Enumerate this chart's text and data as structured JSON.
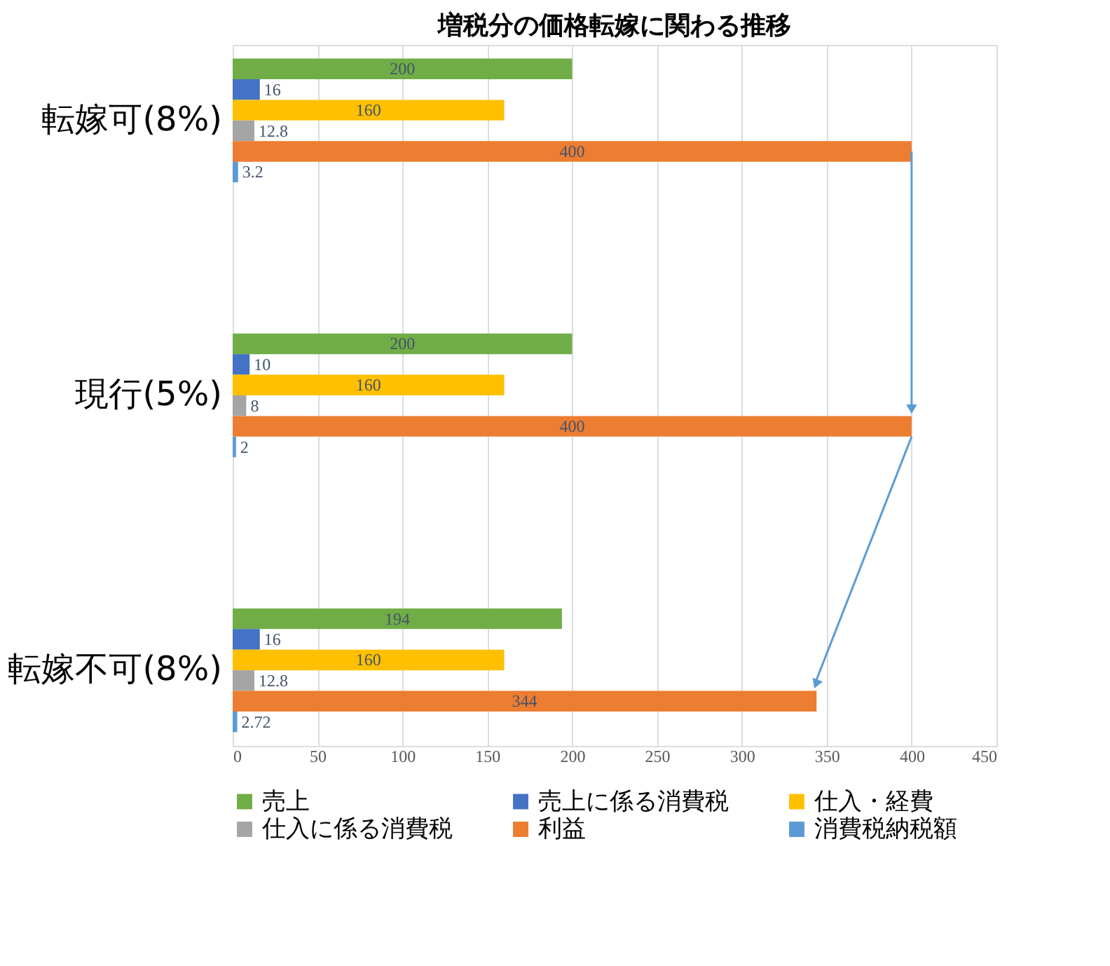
{
  "chart_data": {
    "type": "bar",
    "title": "増税分の価格転嫁に関わる推移",
    "orientation": "horizontal",
    "categories": [
      "転嫁可(8%)",
      "現行(5%)",
      "転嫁不可(8%)"
    ],
    "series": [
      {
        "name": "売上",
        "color": "#70ad47",
        "values": [
          200,
          200,
          194
        ]
      },
      {
        "name": "売上に係る消費税",
        "color": "#4472c4",
        "values": [
          16,
          10,
          16
        ]
      },
      {
        "name": "仕入・経費",
        "color": "#ffc000",
        "values": [
          160,
          160,
          160
        ]
      },
      {
        "name": "仕入に係る消費税",
        "color": "#a5a5a5",
        "values": [
          12.8,
          8,
          12.8
        ]
      },
      {
        "name": "利益",
        "color": "#ed7d31",
        "values": [
          400,
          400,
          344
        ]
      },
      {
        "name": "消費税納税額",
        "color": "#5b9bd5",
        "values": [
          3.2,
          2,
          2.72
        ]
      }
    ],
    "xlim": [
      0,
      450
    ],
    "xticks": [
      0,
      50,
      100,
      150,
      200,
      250,
      300,
      350,
      400,
      450
    ],
    "grid": "x",
    "legend": "bottom",
    "data_labels": true
  }
}
